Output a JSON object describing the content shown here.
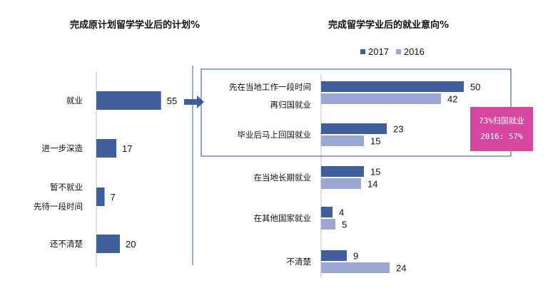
{
  "chart_data": [
    {
      "type": "bar",
      "orientation": "horizontal",
      "title": "完成原计划留学学业后的计划%",
      "categories": [
        "就业",
        "进一步深造",
        "暂不就业 先待一段时间",
        "还不清楚"
      ],
      "category_lines": [
        [
          "就业"
        ],
        [
          "进一步深造"
        ],
        [
          "暂不就业",
          "先待一段时间"
        ],
        [
          "还不清楚"
        ]
      ],
      "values": [
        55,
        17,
        7,
        20
      ],
      "color": "#3f5f9c",
      "xlim": [
        0,
        100
      ]
    },
    {
      "type": "bar",
      "orientation": "horizontal",
      "title": "完成留学学业后的就业意向%",
      "categories": [
        "先在当地工作一段时间 再归国就业",
        "毕业后马上回国就业",
        "在当地长期就业",
        "在其他国家就业",
        "不清楚"
      ],
      "category_lines": [
        [
          "先在当地工作一段时间",
          "再归国就业"
        ],
        [
          "毕业后马上回国就业"
        ],
        [
          "在当地长期就业"
        ],
        [
          "在其他国家就业"
        ],
        [
          "不清楚"
        ]
      ],
      "series": [
        {
          "name": "2017",
          "values": [
            50,
            23,
            15,
            4,
            9
          ],
          "color": "#3f5f9c"
        },
        {
          "name": "2016",
          "values": [
            42,
            15,
            14,
            5,
            24
          ],
          "color": "#9aa8d3"
        }
      ],
      "legend_position": "top",
      "xlim": [
        0,
        100
      ]
    }
  ],
  "callout": {
    "line1": "73%归国就业",
    "line2": "2016: 57%",
    "color": "#d6479f"
  }
}
